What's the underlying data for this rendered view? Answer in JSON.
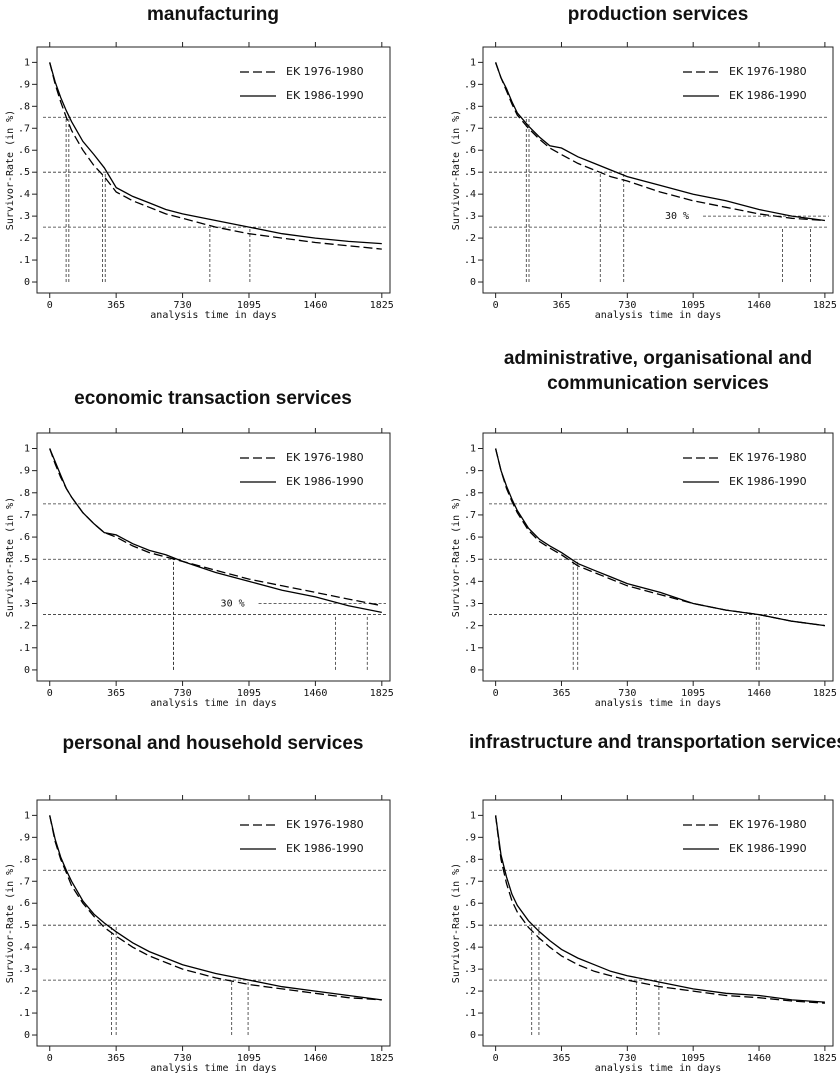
{
  "chart_data": [
    {
      "type": "line",
      "title": "manufacturing",
      "ylabel": "Survivor-Rate (in %)",
      "xlabel": "analysis time in days",
      "legend": "upper right",
      "x": [
        0,
        30,
        60,
        91,
        120,
        182,
        243,
        300,
        365,
        456,
        547,
        638,
        730,
        912,
        1095,
        1277,
        1460,
        1642,
        1825
      ],
      "series": [
        {
          "name": "EK 1976-1980",
          "color": "#000000",
          "line_style": "dashed",
          "values": [
            1,
            0.9,
            0.82,
            0.75,
            0.69,
            0.6,
            0.53,
            0.48,
            0.41,
            0.37,
            0.34,
            0.31,
            0.29,
            0.25,
            0.22,
            0.2,
            0.18,
            0.165,
            0.15
          ],
          "quartile_x": [
            90,
            290,
            880
          ]
        },
        {
          "name": "EK 1986-1990",
          "color": "#000000",
          "line_style": "solid",
          "values": [
            1,
            0.91,
            0.84,
            0.78,
            0.73,
            0.64,
            0.58,
            0.52,
            0.43,
            0.39,
            0.36,
            0.33,
            0.31,
            0.28,
            0.25,
            0.22,
            0.2,
            0.185,
            0.175
          ],
          "quartile_x": [
            105,
            305,
            1100
          ]
        }
      ],
      "reference_y": [
        0.75,
        0.5,
        0.25
      ],
      "xlim": [
        -70,
        1870
      ],
      "ylim": [
        -0.05,
        1.07
      ],
      "xticks": [
        0,
        365,
        730,
        1095,
        1460,
        1825
      ],
      "yticks": [
        0,
        {
          "value": 0.1,
          "label": ".1"
        },
        {
          "value": 0.2,
          "label": ".2"
        },
        {
          "value": 0.3,
          "label": ".3"
        },
        {
          "value": 0.4,
          "label": ".4"
        },
        {
          "value": 0.5,
          "label": ".5"
        },
        {
          "value": 0.6,
          "label": ".6"
        },
        {
          "value": 0.7,
          "label": ".7"
        },
        {
          "value": 0.8,
          "label": ".8"
        },
        {
          "value": 0.9,
          "label": ".9"
        },
        1
      ]
    },
    {
      "type": "line",
      "title": "production services",
      "ylabel": "Survivor-Rate (in %)",
      "xlabel": "analysis time in days",
      "legend": "upper right",
      "x": [
        0,
        30,
        60,
        91,
        120,
        182,
        243,
        300,
        365,
        456,
        547,
        638,
        730,
        912,
        1095,
        1277,
        1460,
        1642,
        1825
      ],
      "series": [
        {
          "name": "EK 1976-1980",
          "color": "#000000",
          "line_style": "dashed",
          "values": [
            1,
            0.93,
            0.87,
            0.81,
            0.76,
            0.7,
            0.65,
            0.61,
            0.58,
            0.54,
            0.51,
            0.48,
            0.46,
            0.41,
            0.37,
            0.34,
            0.31,
            0.29,
            0.28
          ],
          "quartile_x": [
            170,
            580,
            1590
          ]
        },
        {
          "name": "EK 1986-1990",
          "color": "#000000",
          "line_style": "solid",
          "values": [
            1,
            0.93,
            0.88,
            0.82,
            0.77,
            0.71,
            0.66,
            0.62,
            0.61,
            0.57,
            0.54,
            0.51,
            0.48,
            0.44,
            0.4,
            0.37,
            0.33,
            0.3,
            0.28
          ],
          "quartile_x": [
            185,
            710,
            1745
          ]
        }
      ],
      "reference_y": [
        0.75,
        0.5,
        0.25
      ],
      "annotation": {
        "text": "30 %",
        "y": 0.3
      },
      "xlim": [
        -70,
        1870
      ],
      "ylim": [
        -0.05,
        1.07
      ],
      "xticks": [
        0,
        365,
        730,
        1095,
        1460,
        1825
      ],
      "yticks": [
        0,
        {
          "value": 0.1,
          "label": ".1"
        },
        {
          "value": 0.2,
          "label": ".2"
        },
        {
          "value": 0.3,
          "label": ".3"
        },
        {
          "value": 0.4,
          "label": ".4"
        },
        {
          "value": 0.5,
          "label": ".5"
        },
        {
          "value": 0.6,
          "label": ".6"
        },
        {
          "value": 0.7,
          "label": ".7"
        },
        {
          "value": 0.8,
          "label": ".8"
        },
        {
          "value": 0.9,
          "label": ".9"
        },
        1
      ]
    },
    {
      "type": "line",
      "title": "economic transaction services",
      "ylabel": "Survivor-Rate (in %)",
      "xlabel": "analysis time in days",
      "legend": "upper right",
      "x": [
        0,
        30,
        60,
        91,
        120,
        182,
        243,
        300,
        365,
        456,
        547,
        638,
        730,
        912,
        1095,
        1277,
        1460,
        1642,
        1825
      ],
      "series": [
        {
          "name": "EK 1976-1980",
          "color": "#000000",
          "line_style": "dashed",
          "values": [
            1,
            0.93,
            0.87,
            0.82,
            0.78,
            0.71,
            0.66,
            0.62,
            0.6,
            0.56,
            0.53,
            0.51,
            0.49,
            0.45,
            0.41,
            0.38,
            0.35,
            0.32,
            0.29
          ],
          "quartile_x": [
            null,
            680,
            1745
          ]
        },
        {
          "name": "EK 1986-1990",
          "color": "#000000",
          "line_style": "solid",
          "values": [
            1,
            0.94,
            0.88,
            0.82,
            0.78,
            0.71,
            0.66,
            0.62,
            0.61,
            0.57,
            0.54,
            0.52,
            0.49,
            0.44,
            0.4,
            0.36,
            0.33,
            0.29,
            0.26
          ],
          "quartile_x": [
            null,
            680,
            1570
          ]
        }
      ],
      "reference_y": [
        0.75,
        0.5,
        0.25
      ],
      "annotation": {
        "text": "30 %",
        "y": 0.3
      },
      "xlim": [
        -70,
        1870
      ],
      "ylim": [
        -0.05,
        1.07
      ],
      "xticks": [
        0,
        365,
        730,
        1095,
        1460,
        1825
      ],
      "yticks": [
        0,
        {
          "value": 0.1,
          "label": ".1"
        },
        {
          "value": 0.2,
          "label": ".2"
        },
        {
          "value": 0.3,
          "label": ".3"
        },
        {
          "value": 0.4,
          "label": ".4"
        },
        {
          "value": 0.5,
          "label": ".5"
        },
        {
          "value": 0.6,
          "label": ".6"
        },
        {
          "value": 0.7,
          "label": ".7"
        },
        {
          "value": 0.8,
          "label": ".8"
        },
        {
          "value": 0.9,
          "label": ".9"
        },
        1
      ]
    },
    {
      "type": "line",
      "title": "administrative, organisational and communication services",
      "ylabel": "Survivor-Rate (in %)",
      "xlabel": "analysis time in days",
      "legend": "upper right",
      "x": [
        0,
        30,
        60,
        91,
        120,
        182,
        243,
        300,
        365,
        456,
        547,
        638,
        730,
        912,
        1095,
        1277,
        1460,
        1642,
        1825
      ],
      "series": [
        {
          "name": "EK 1976-1980",
          "color": "#000000",
          "line_style": "dashed",
          "values": [
            1,
            0.9,
            0.82,
            0.76,
            0.71,
            0.63,
            0.58,
            0.55,
            0.52,
            0.47,
            0.44,
            0.41,
            0.38,
            0.34,
            0.3,
            0.27,
            0.25,
            0.22,
            0.2
          ],
          "quartile_x": [
            null,
            430,
            1445
          ]
        },
        {
          "name": "EK 1986-1990",
          "color": "#000000",
          "line_style": "solid",
          "values": [
            1,
            0.9,
            0.83,
            0.77,
            0.72,
            0.64,
            0.59,
            0.56,
            0.53,
            0.48,
            0.45,
            0.42,
            0.39,
            0.35,
            0.3,
            0.27,
            0.25,
            0.22,
            0.2
          ],
          "quartile_x": [
            null,
            455,
            1460
          ]
        }
      ],
      "reference_y": [
        0.75,
        0.5,
        0.25
      ],
      "xlim": [
        -70,
        1870
      ],
      "ylim": [
        -0.05,
        1.07
      ],
      "xticks": [
        0,
        365,
        730,
        1095,
        1460,
        1825
      ],
      "yticks": [
        0,
        {
          "value": 0.1,
          "label": ".1"
        },
        {
          "value": 0.2,
          "label": ".2"
        },
        {
          "value": 0.3,
          "label": ".3"
        },
        {
          "value": 0.4,
          "label": ".4"
        },
        {
          "value": 0.5,
          "label": ".5"
        },
        {
          "value": 0.6,
          "label": ".6"
        },
        {
          "value": 0.7,
          "label": ".7"
        },
        {
          "value": 0.8,
          "label": ".8"
        },
        {
          "value": 0.9,
          "label": ".9"
        },
        1
      ]
    },
    {
      "type": "line",
      "title": "personal and household services",
      "ylabel": "Survivor-Rate (in %)",
      "xlabel": "analysis time in days",
      "legend": "upper right",
      "x": [
        0,
        30,
        60,
        91,
        120,
        182,
        243,
        300,
        365,
        456,
        547,
        638,
        730,
        912,
        1095,
        1277,
        1460,
        1642,
        1825
      ],
      "series": [
        {
          "name": "EK 1976-1980",
          "color": "#000000",
          "line_style": "dashed",
          "values": [
            1,
            0.88,
            0.8,
            0.74,
            0.68,
            0.6,
            0.54,
            0.49,
            0.45,
            0.4,
            0.36,
            0.33,
            0.3,
            0.26,
            0.23,
            0.21,
            0.19,
            0.17,
            0.16
          ],
          "quartile_x": [
            null,
            340,
            1000
          ]
        },
        {
          "name": "EK 1986-1990",
          "color": "#000000",
          "line_style": "solid",
          "values": [
            1,
            0.89,
            0.81,
            0.75,
            0.7,
            0.61,
            0.55,
            0.51,
            0.47,
            0.42,
            0.38,
            0.35,
            0.32,
            0.28,
            0.25,
            0.22,
            0.2,
            0.18,
            0.16
          ],
          "quartile_x": [
            null,
            365,
            1090
          ]
        }
      ],
      "reference_y": [
        0.75,
        0.5,
        0.25
      ],
      "xlim": [
        -70,
        1870
      ],
      "ylim": [
        -0.05,
        1.07
      ],
      "xticks": [
        0,
        365,
        730,
        1095,
        1460,
        1825
      ],
      "yticks": [
        0,
        {
          "value": 0.1,
          "label": ".1"
        },
        {
          "value": 0.2,
          "label": ".2"
        },
        {
          "value": 0.3,
          "label": ".3"
        },
        {
          "value": 0.4,
          "label": ".4"
        },
        {
          "value": 0.5,
          "label": ".5"
        },
        {
          "value": 0.6,
          "label": ".6"
        },
        {
          "value": 0.7,
          "label": ".7"
        },
        {
          "value": 0.8,
          "label": ".8"
        },
        {
          "value": 0.9,
          "label": ".9"
        },
        1
      ]
    },
    {
      "type": "line",
      "title": "infrastructure and transportation services",
      "ylabel": "Survivor-Rate (in %)",
      "xlabel": "analysis time in days",
      "legend": "upper right",
      "x": [
        0,
        30,
        60,
        91,
        120,
        182,
        243,
        300,
        365,
        456,
        547,
        638,
        730,
        912,
        1095,
        1277,
        1460,
        1642,
        1825
      ],
      "series": [
        {
          "name": "EK 1976-1980",
          "color": "#000000",
          "line_style": "dashed",
          "values": [
            1,
            0.8,
            0.69,
            0.61,
            0.56,
            0.49,
            0.44,
            0.4,
            0.36,
            0.32,
            0.29,
            0.27,
            0.25,
            0.22,
            0.2,
            0.18,
            0.17,
            0.155,
            0.145
          ],
          "quartile_x": [
            null,
            200,
            780
          ]
        },
        {
          "name": "EK 1986-1990",
          "color": "#000000",
          "line_style": "solid",
          "values": [
            1,
            0.82,
            0.72,
            0.64,
            0.59,
            0.52,
            0.47,
            0.43,
            0.39,
            0.35,
            0.32,
            0.29,
            0.27,
            0.24,
            0.21,
            0.19,
            0.18,
            0.16,
            0.15
          ],
          "quartile_x": [
            null,
            240,
            905
          ]
        }
      ],
      "reference_y": [
        0.75,
        0.5,
        0.25
      ],
      "xlim": [
        -70,
        1870
      ],
      "ylim": [
        -0.05,
        1.07
      ],
      "xticks": [
        0,
        365,
        730,
        1095,
        1460,
        1825
      ],
      "yticks": [
        0,
        {
          "value": 0.1,
          "label": ".1"
        },
        {
          "value": 0.2,
          "label": ".2"
        },
        {
          "value": 0.3,
          "label": ".3"
        },
        {
          "value": 0.4,
          "label": ".4"
        },
        {
          "value": 0.5,
          "label": ".5"
        },
        {
          "value": 0.6,
          "label": ".6"
        },
        {
          "value": 0.7,
          "label": ".7"
        },
        {
          "value": 0.8,
          "label": ".8"
        },
        {
          "value": 0.9,
          "label": ".9"
        },
        1
      ]
    }
  ]
}
